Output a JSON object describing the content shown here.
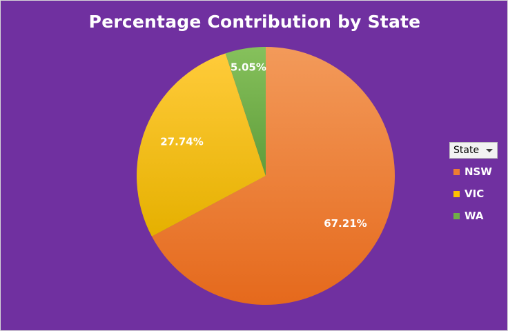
{
  "chart_data": {
    "type": "pie",
    "title": "Percentage Contribution by State",
    "categories": [
      "NSW",
      "VIC",
      "WA"
    ],
    "values": [
      67.21,
      27.74,
      5.05
    ],
    "data_labels": [
      "67.21%",
      "27.74%",
      "5.05%"
    ],
    "legend_title": "State",
    "legend_position": "right",
    "colors": {
      "background": "#7030a0",
      "NSW": "#ed7d31",
      "VIC": "#ffc000",
      "WA": "#70ad47"
    },
    "start_angle_deg": 0,
    "direction": "clockwise"
  },
  "legend": {
    "filter_label": "State",
    "filter_icon": "dropdown-caret-icon",
    "items": [
      {
        "label": "NSW",
        "color": "#ed7d31"
      },
      {
        "label": "VIC",
        "color": "#ffc000"
      },
      {
        "label": "WA",
        "color": "#70ad47"
      }
    ]
  }
}
